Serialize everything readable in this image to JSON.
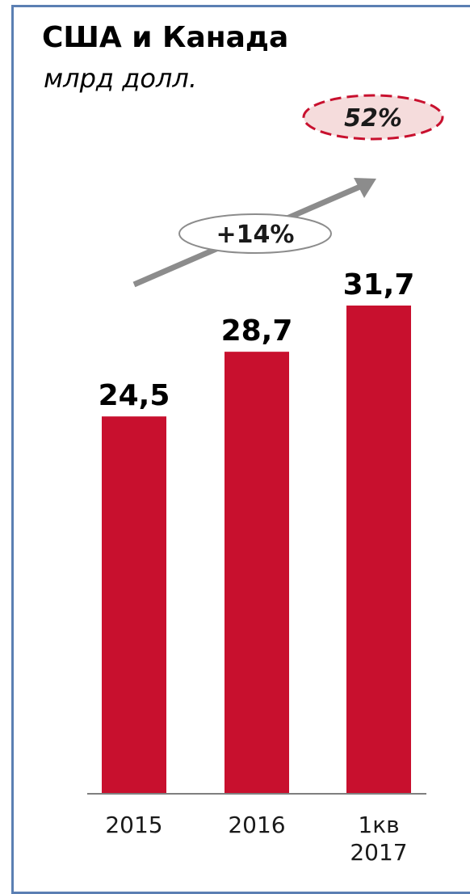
{
  "chart_data": {
    "type": "bar",
    "title": "США и Канада",
    "subtitle": "млрд долл.",
    "categories": [
      [
        "2015"
      ],
      [
        "2016"
      ],
      [
        "1кв",
        "2017"
      ]
    ],
    "values": [
      24.5,
      28.7,
      31.7
    ],
    "value_labels": [
      "24,5",
      "28,7",
      "31,7"
    ],
    "ylim": [
      0,
      35
    ],
    "grid": false,
    "legend": "none",
    "annotations": {
      "growth": "+14%",
      "share": "52%"
    },
    "colors": {
      "bar": "#c8102e",
      "arrow": "#8c8c8c",
      "share_fill": "#f5dcdc",
      "share_border": "#c8102e",
      "axis": "#7f7f7f",
      "frame": "#5b7fb3"
    }
  }
}
